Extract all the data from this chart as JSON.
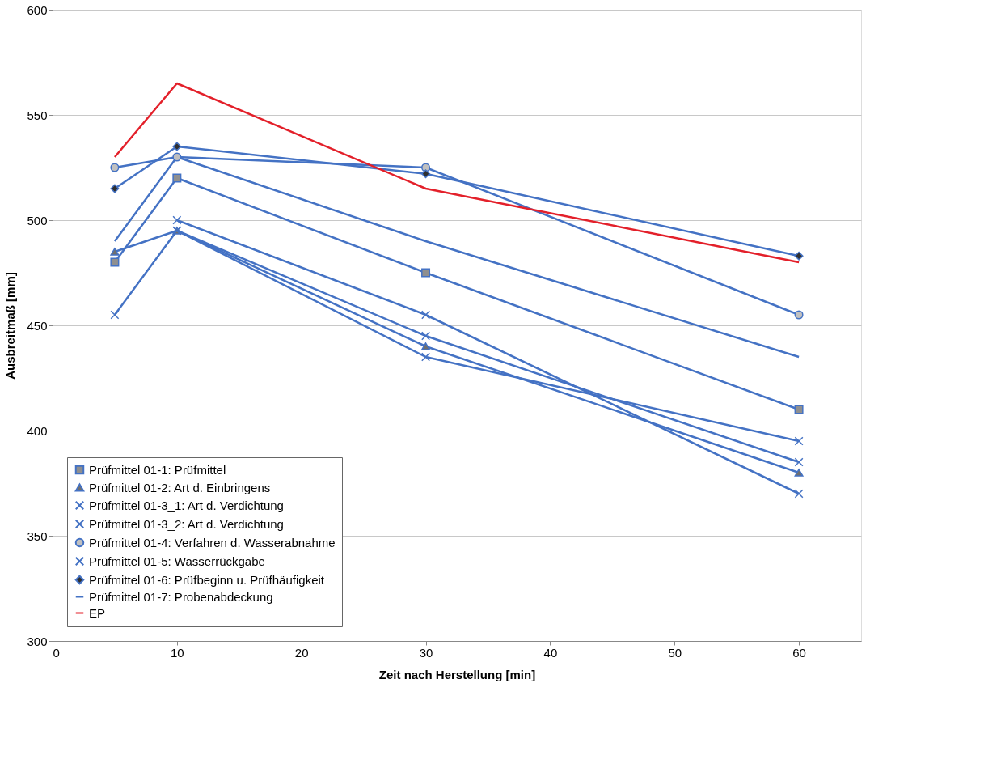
{
  "chart_data": {
    "type": "line",
    "xlabel": "Zeit nach Herstellung [min]",
    "ylabel": "Ausbreitmaß [mm]",
    "x": [
      5,
      10,
      30,
      60
    ],
    "xlim": [
      0,
      65
    ],
    "xticks": [
      0,
      10,
      20,
      30,
      40,
      50,
      60
    ],
    "ylim": [
      300,
      600
    ],
    "yticks": [
      300,
      350,
      400,
      450,
      500,
      550,
      600
    ],
    "grid": "y",
    "legend": "bottom left",
    "line_style": "solid",
    "series": [
      {
        "name": "Prüfmittel 01-1:  Prüfmittel",
        "color": "#4472c4",
        "marker": "square",
        "values": [
          480,
          520,
          475,
          410
        ]
      },
      {
        "name": "Prüfmittel 01-2: Art d. Einbringens",
        "color": "#4472c4",
        "marker": "triangle",
        "values": [
          485,
          495,
          440,
          380
        ]
      },
      {
        "name": "Prüfmittel 01-3_1: Art d. Verdichtung",
        "color": "#4472c4",
        "marker": "cross",
        "values": [
          455,
          495,
          445,
          385
        ]
      },
      {
        "name": "Prüfmittel 01-3_2: Art d. Verdichtung",
        "color": "#4472c4",
        "marker": "cross",
        "values": [
          null,
          495,
          435,
          395
        ]
      },
      {
        "name": "Prüfmittel 01-4: Verfahren d. Wasserabnahme",
        "color": "#4472c4",
        "marker": "circle",
        "values": [
          525,
          530,
          525,
          455
        ]
      },
      {
        "name": "Prüfmittel 01-5: Wasserrückgabe",
        "color": "#4472c4",
        "marker": "cross",
        "values": [
          null,
          500,
          455,
          370
        ]
      },
      {
        "name": "Prüfmittel 01-6: Prüfbeginn u. Prüfhäufigkeit",
        "color": "#4472c4",
        "marker": "diamond",
        "values": [
          515,
          535,
          522,
          483
        ]
      },
      {
        "name": "Prüfmittel 01-7: Probenabdeckung",
        "color": "#4472c4",
        "marker": "none",
        "values": [
          490,
          530,
          490,
          435
        ]
      },
      {
        "name": "EP",
        "color": "#e3202a",
        "marker": "none",
        "values": [
          530,
          565,
          515,
          480
        ]
      }
    ]
  }
}
